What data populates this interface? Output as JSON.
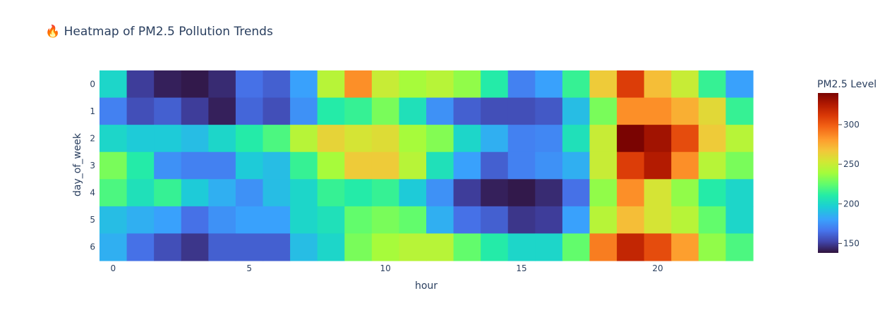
{
  "chart_data": {
    "type": "heatmap",
    "title": "🔥 Heatmap of PM2.5 Pollution Trends",
    "xlabel": "hour",
    "ylabel": "day_of_week",
    "colorbar_title": "PM2.5 Level",
    "colorscale": "turbo",
    "zmin": 138,
    "zmax": 340,
    "x": [
      0,
      1,
      2,
      3,
      4,
      5,
      6,
      7,
      8,
      9,
      10,
      11,
      12,
      13,
      14,
      15,
      16,
      17,
      18,
      19,
      20,
      21,
      22,
      23
    ],
    "y": [
      0,
      1,
      2,
      3,
      4,
      5,
      6
    ],
    "x_ticks": [
      0,
      5,
      10,
      15,
      20
    ],
    "y_ticks": [
      0,
      1,
      2,
      3,
      4,
      5,
      6
    ],
    "colorbar_ticks": [
      150,
      200,
      250,
      300
    ],
    "z": [
      [
        200,
        150,
        142,
        140,
        145,
        165,
        160,
        180,
        245,
        285,
        250,
        240,
        245,
        235,
        210,
        170,
        180,
        215,
        265,
        310,
        270,
        250,
        215,
        180
      ],
      [
        170,
        155,
        160,
        150,
        142,
        162,
        155,
        175,
        210,
        215,
        230,
        205,
        175,
        160,
        155,
        155,
        158,
        190,
        230,
        285,
        285,
        275,
        260,
        215
      ],
      [
        200,
        195,
        195,
        190,
        200,
        210,
        220,
        245,
        262,
        255,
        258,
        240,
        232,
        200,
        185,
        170,
        172,
        205,
        250,
        340,
        330,
        305,
        265,
        245
      ],
      [
        230,
        210,
        175,
        170,
        170,
        195,
        190,
        215,
        240,
        265,
        265,
        245,
        205,
        180,
        160,
        170,
        175,
        185,
        250,
        310,
        325,
        285,
        245,
        230
      ],
      [
        220,
        205,
        215,
        195,
        185,
        175,
        190,
        200,
        215,
        210,
        215,
        195,
        175,
        150,
        142,
        140,
        145,
        165,
        235,
        285,
        255,
        235,
        210,
        200
      ],
      [
        190,
        185,
        180,
        165,
        175,
        180,
        180,
        200,
        205,
        225,
        230,
        225,
        185,
        165,
        160,
        148,
        150,
        180,
        245,
        270,
        255,
        245,
        225,
        200
      ],
      [
        185,
        165,
        155,
        148,
        160,
        160,
        160,
        190,
        200,
        230,
        240,
        245,
        245,
        225,
        210,
        200,
        200,
        225,
        290,
        320,
        305,
        280,
        235,
        220
      ]
    ]
  }
}
